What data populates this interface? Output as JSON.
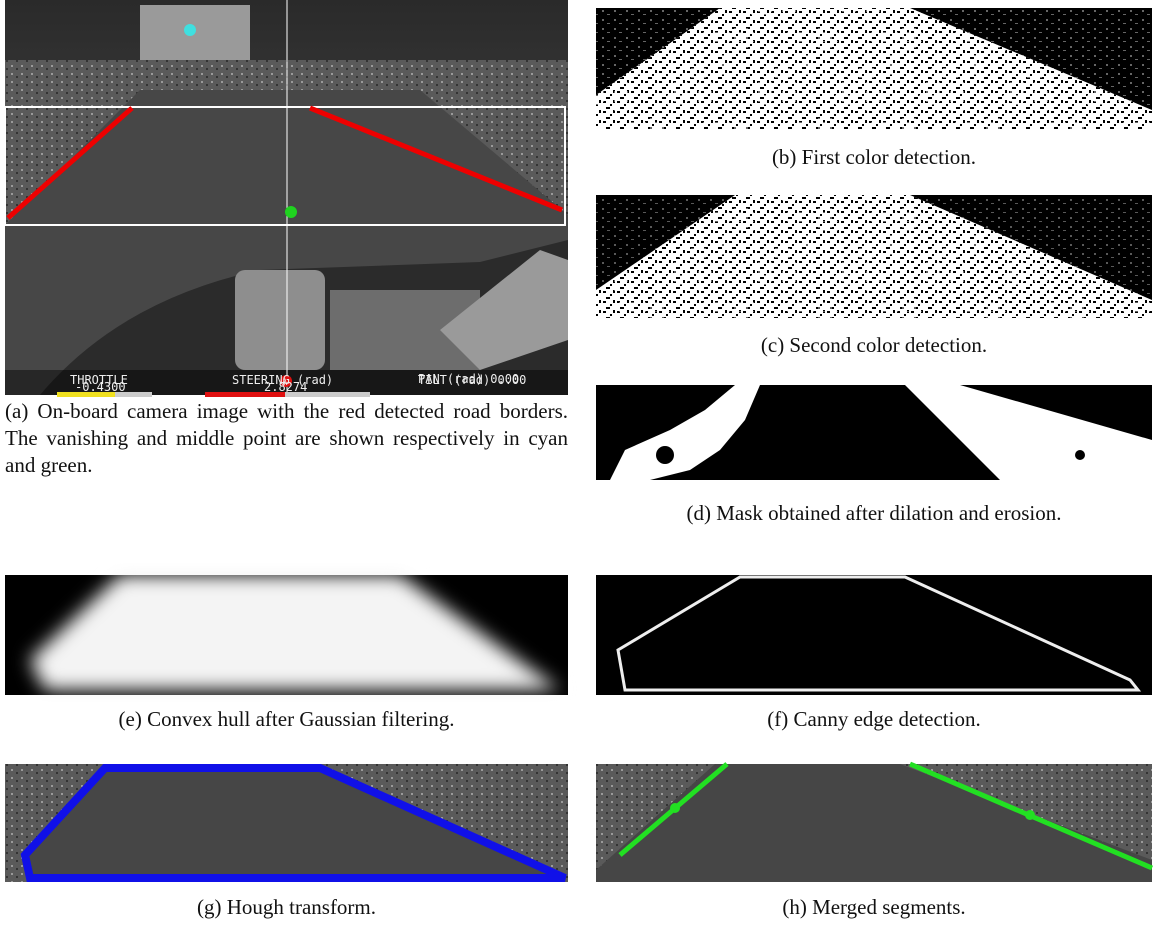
{
  "panels": [
    {
      "caption": "(a) On-board camera image with the red detected road borders. The vanishing and middle point are shown respectively in cyan and green."
    },
    {
      "caption": "(b) First color detection."
    },
    {
      "caption": "(c) Second color detection."
    },
    {
      "caption": "(d) Mask obtained after dilation and erosion."
    },
    {
      "caption": "(e) Convex hull after Gaussian filtering."
    },
    {
      "caption": "(f) Canny edge detection."
    },
    {
      "caption": "(g) Hough transform."
    },
    {
      "caption": "(h) Merged segments."
    }
  ],
  "hud": {
    "throttle_label": "THROTTLE",
    "throttle_value": "-0.4300",
    "steering_label": "STEERING (rad)",
    "steering_value": "2.8274",
    "steering_marker": "A",
    "tilt": "TILT (rad) 0.00",
    "pan": "PAN (rad) 0.00"
  }
}
